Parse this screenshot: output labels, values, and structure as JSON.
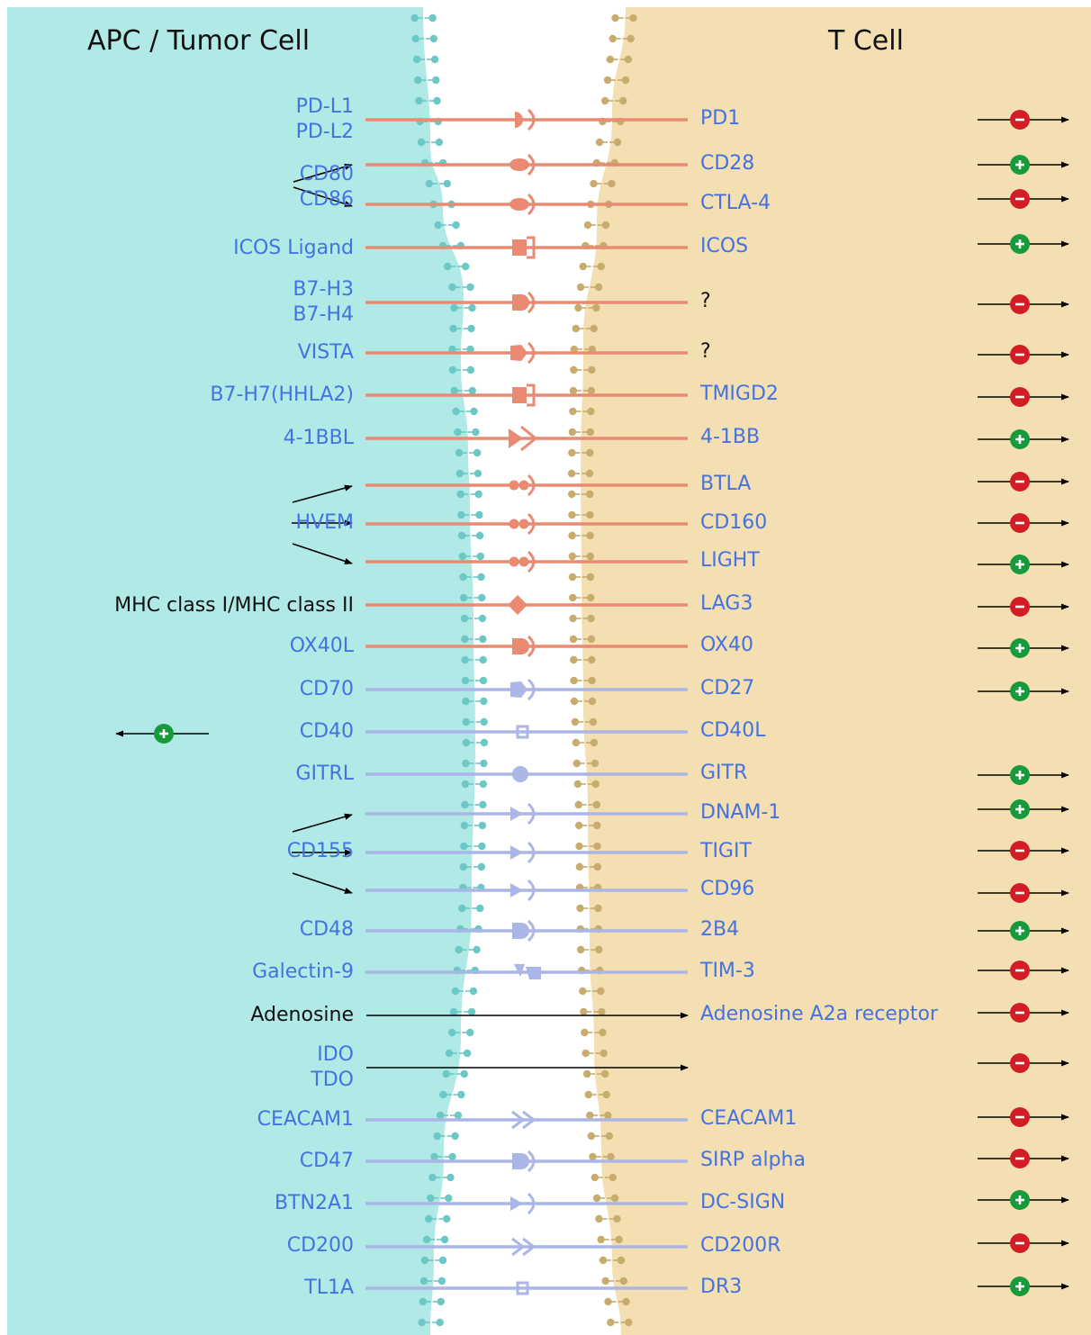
{
  "titles": {
    "left": "APC / Tumor Cell",
    "right": "T Cell"
  },
  "colors": {
    "left_membrane_bg": "#b0e9e6",
    "right_membrane_bg": "#f3dfb1",
    "salmon_line": "#ea8a72",
    "lavender_line": "#a9b6e6",
    "label_blue": "#4472e0",
    "positive": "#179a3a",
    "negative": "#d21d24"
  },
  "left_labels": [
    {
      "lines": [
        "PD-L1",
        "PD-L2"
      ]
    },
    {
      "lines": [
        "CD80",
        "CD86"
      ]
    },
    {
      "lines": [
        "ICOS Ligand"
      ]
    },
    {
      "lines": [
        "B7-H3",
        "B7-H4"
      ]
    },
    {
      "lines": [
        "VISTA"
      ]
    },
    {
      "lines": [
        "B7-H7(HHLA2)"
      ]
    },
    {
      "lines": [
        "4-1BBL"
      ]
    },
    {
      "lines": [
        "HVEM"
      ]
    },
    {
      "lines": [
        "MHC class I/MHC class II"
      ],
      "black": true
    },
    {
      "lines": [
        "OX40L"
      ]
    },
    {
      "lines": [
        "CD70"
      ]
    },
    {
      "lines": [
        "CD40"
      ]
    },
    {
      "lines": [
        "GITRL"
      ]
    },
    {
      "lines": [
        "CD155"
      ]
    },
    {
      "lines": [
        "CD48"
      ]
    },
    {
      "lines": [
        "Galectin-9"
      ]
    },
    {
      "lines": [
        "Adenosine"
      ],
      "black": true
    },
    {
      "lines": [
        "IDO",
        "TDO"
      ]
    },
    {
      "lines": [
        "CEACAM1"
      ]
    },
    {
      "lines": [
        "CD47"
      ]
    },
    {
      "lines": [
        "BTN2A1"
      ]
    },
    {
      "lines": [
        "CD200"
      ]
    },
    {
      "lines": [
        "TL1A"
      ]
    }
  ],
  "right_labels": [
    {
      "text": "PD1"
    },
    {
      "text": "CD28"
    },
    {
      "text": "CTLA-4"
    },
    {
      "text": "ICOS"
    },
    {
      "text": "?",
      "black": true
    },
    {
      "text": "?",
      "black": true
    },
    {
      "text": "TMIGD2"
    },
    {
      "text": "4-1BB"
    },
    {
      "text": "BTLA"
    },
    {
      "text": "CD160"
    },
    {
      "text": "LIGHT"
    },
    {
      "text": "LAG3"
    },
    {
      "text": "OX40"
    },
    {
      "text": "CD27"
    },
    {
      "text": "CD40L"
    },
    {
      "text": "GITR"
    },
    {
      "text": "DNAM-1"
    },
    {
      "text": "TIGIT"
    },
    {
      "text": "CD96"
    },
    {
      "text": "2B4"
    },
    {
      "text": "TIM-3"
    },
    {
      "text": "Adenosine A2a receptor"
    },
    {
      "text": ""
    },
    {
      "text": "CEACAM1"
    },
    {
      "text": "SIRP alpha"
    },
    {
      "text": "DC-SIGN"
    },
    {
      "text": "CD200R"
    },
    {
      "text": "DR3"
    }
  ],
  "interactions": [
    {
      "line": "salmon",
      "shape": "semicircle"
    },
    {
      "line": "salmon",
      "shape": "ellipse"
    },
    {
      "line": "salmon",
      "shape": "ellipse"
    },
    {
      "line": "salmon",
      "shape": "square"
    },
    {
      "line": "salmon",
      "shape": "square-half"
    },
    {
      "line": "salmon",
      "shape": "pentagon"
    },
    {
      "line": "salmon",
      "shape": "square"
    },
    {
      "line": "salmon",
      "shape": "double-chevron"
    },
    {
      "line": "salmon",
      "shape": "double-dot"
    },
    {
      "line": "salmon",
      "shape": "double-dot"
    },
    {
      "line": "salmon",
      "shape": "double-dot"
    },
    {
      "line": "salmon",
      "shape": "diamond"
    },
    {
      "line": "salmon",
      "shape": "square-half"
    },
    {
      "line": "lavender",
      "shape": "pentagon"
    },
    {
      "line": "lavender",
      "shape": "small-square"
    },
    {
      "line": "lavender",
      "shape": "circle"
    },
    {
      "line": "lavender",
      "shape": "chevron"
    },
    {
      "line": "lavender",
      "shape": "chevron"
    },
    {
      "line": "lavender",
      "shape": "chevron"
    },
    {
      "line": "lavender",
      "shape": "square-half"
    },
    {
      "line": "lavender",
      "shape": "galectin"
    },
    {
      "line": "black",
      "shape": "none"
    },
    {
      "line": "black",
      "shape": "none"
    },
    {
      "line": "lavender",
      "shape": "open-chevron"
    },
    {
      "line": "lavender",
      "shape": "square-half"
    },
    {
      "line": "lavender",
      "shape": "chevron"
    },
    {
      "line": "lavender",
      "shape": "open-chevron"
    },
    {
      "line": "lavender",
      "shape": "small-square"
    }
  ],
  "effects": [
    "negative",
    "positive",
    "negative",
    "positive",
    "negative",
    "negative",
    "negative",
    "positive",
    "negative",
    "negative",
    "positive",
    "negative",
    "positive",
    "positive",
    "none",
    "positive",
    "positive",
    "negative",
    "negative",
    "positive",
    "negative",
    "negative",
    "negative",
    "negative",
    "negative",
    "positive",
    "negative",
    "positive"
  ],
  "cd40_signal": "positive",
  "icons": {
    "positive": "plus-circle-icon",
    "negative": "minus-circle-icon"
  }
}
